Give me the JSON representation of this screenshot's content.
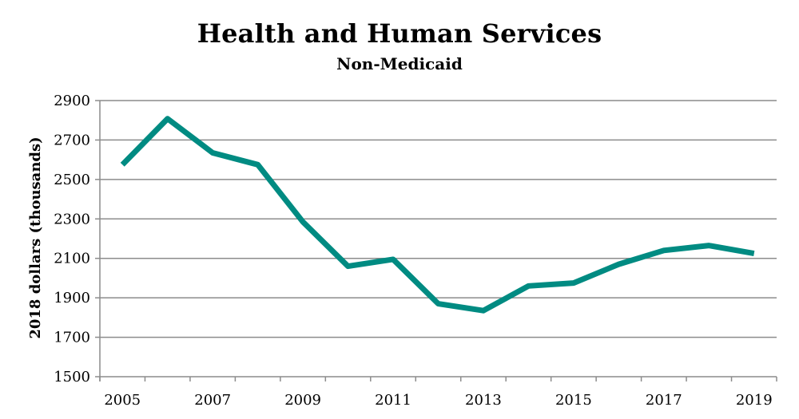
{
  "chart_data": {
    "type": "line",
    "title": "Health and Human Services",
    "subtitle": "Non-Medicaid",
    "xlabel": "",
    "ylabel": "2018 dollars (thousands)",
    "x": [
      2005,
      2006,
      2007,
      2008,
      2009,
      2010,
      2011,
      2012,
      2013,
      2014,
      2015,
      2016,
      2017,
      2018,
      2019
    ],
    "series": [
      {
        "values": [
          2575,
          2808,
          2635,
          2575,
          2285,
          2060,
          2095,
          1870,
          1835,
          1960,
          1975,
          2070,
          2140,
          2165,
          2125
        ]
      }
    ],
    "ylim": [
      1500,
      2900
    ],
    "yticks": [
      1500,
      1700,
      1900,
      2100,
      2300,
      2500,
      2700,
      2900
    ],
    "xticks": [
      "2005",
      "2007",
      "2009",
      "2011",
      "2013",
      "2015",
      "2017",
      "2019"
    ],
    "grid": "horizontal",
    "legend": "none",
    "colors": {
      "line": "#008B82",
      "grid": "#8C8C8C",
      "axis": "#8C8C8C",
      "text": "#000000"
    }
  }
}
